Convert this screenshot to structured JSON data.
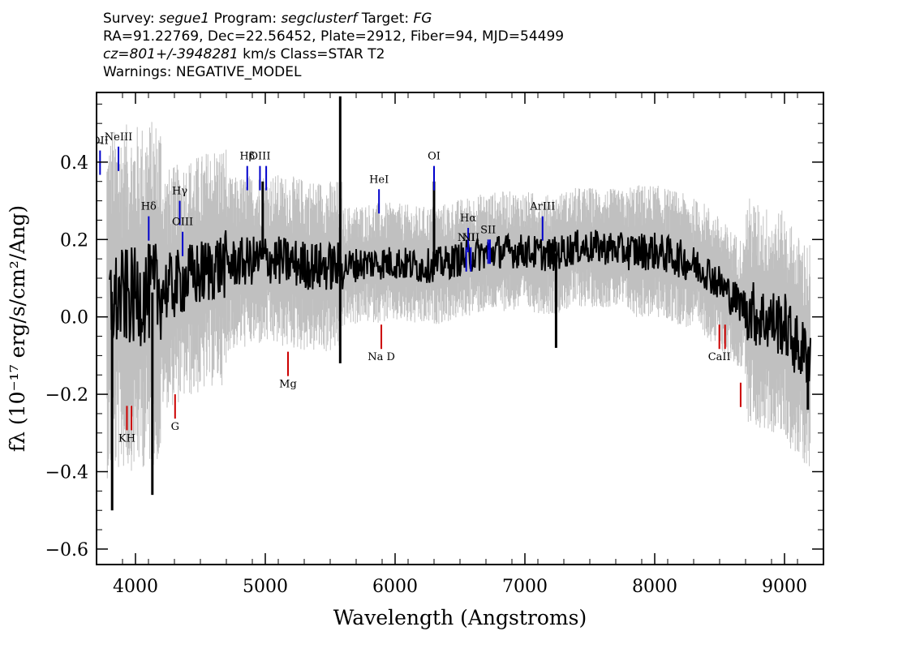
{
  "header": {
    "line1": {
      "survey_label": "Survey: ",
      "survey": "segue1",
      "program_label": " Program: ",
      "program": "segclusterf",
      "target_label": " Target: ",
      "target": "FG"
    },
    "line2": "RA=91.22769, Dec=22.56452, Plate=2912, Fiber=94, MJD=54499",
    "line3": {
      "cz": "cz=801+/-3948281",
      "rest": " km/s Class=STAR T2"
    },
    "line4": "Warnings: NEGATIVE_MODEL"
  },
  "chart_data": {
    "type": "line",
    "xlabel": "Wavelength (Angstroms)",
    "ylabel": "fλ (10⁻¹⁷ erg/s/cm²/Ang)",
    "xlim": [
      3700,
      9300
    ],
    "ylim": [
      -0.64,
      0.58
    ],
    "x_ticks": [
      4000,
      5000,
      6000,
      7000,
      8000,
      9000
    ],
    "x_tick_labels": [
      "4000",
      "5000",
      "6000",
      "7000",
      "8000",
      "9000"
    ],
    "y_ticks": [
      -0.6,
      -0.4,
      -0.2,
      0.0,
      0.2,
      0.4
    ],
    "y_tick_labels": [
      "−0.6",
      "−0.4",
      "−0.2",
      "0.0",
      "0.2",
      "0.4"
    ],
    "grid": false,
    "series": [
      {
        "role": "error_envelope",
        "color": "#c0c0c0"
      },
      {
        "role": "flux",
        "color": "#000000",
        "x": [
          3800,
          3900,
          4000,
          4100,
          4200,
          4300,
          4400,
          4500,
          4600,
          4800,
          5000,
          5200,
          5400,
          5600,
          5800,
          6000,
          6200,
          6400,
          6600,
          6800,
          7000,
          7200,
          7400,
          7600,
          7800,
          8000,
          8200,
          8400,
          8600,
          8800,
          9000,
          9100,
          9200
        ],
        "y": [
          0.03,
          0.05,
          0.05,
          0.06,
          0.07,
          0.08,
          0.1,
          0.11,
          0.13,
          0.14,
          0.15,
          0.14,
          0.13,
          0.13,
          0.14,
          0.14,
          0.13,
          0.14,
          0.16,
          0.17,
          0.17,
          0.16,
          0.18,
          0.18,
          0.17,
          0.17,
          0.15,
          0.12,
          0.05,
          0.0,
          -0.02,
          -0.08,
          -0.1
        ]
      }
    ],
    "spikes": [
      {
        "x": 3820,
        "y": -0.5
      },
      {
        "x": 4130,
        "y": -0.46
      },
      {
        "x": 5577,
        "y": 0.57
      },
      {
        "x": 5577,
        "y": -0.12
      },
      {
        "x": 6300,
        "y": 0.35
      },
      {
        "x": 4980,
        "y": 0.35
      },
      {
        "x": 7240,
        "y": -0.08
      },
      {
        "x": 9180,
        "y": -0.24
      }
    ],
    "emission_lines": [
      {
        "label": "OII",
        "x": 3727,
        "y": 0.43,
        "labelY": 0.5,
        "color": "#0000cc"
      },
      {
        "label": "NeIII",
        "x": 3869,
        "y": 0.44,
        "labelY": 0.5,
        "color": "#0000cc"
      },
      {
        "label": "Hδ",
        "x": 4102,
        "y": 0.26,
        "labelY": 0.33,
        "color": "#0000cc"
      },
      {
        "label": "Hγ",
        "x": 4341,
        "y": 0.3,
        "labelY": 0.36,
        "color": "#0000cc"
      },
      {
        "label": "OIII",
        "x": 4363,
        "y": 0.22,
        "labelY": 0.28,
        "color": "#0000cc"
      },
      {
        "label": "Hβ",
        "x": 4861,
        "y": 0.39,
        "labelY": 0.45,
        "color": "#0000cc"
      },
      {
        "label": "OIII",
        "x": 4959,
        "y": 0.39,
        "labelY": 0.45,
        "color": "#0000cc"
      },
      {
        "label": "",
        "x": 5007,
        "y": 0.39,
        "labelY": 0.45,
        "color": "#0000cc"
      },
      {
        "label": "HeI",
        "x": 5876,
        "y": 0.33,
        "labelY": 0.39,
        "color": "#0000cc"
      },
      {
        "label": "OI",
        "x": 6300,
        "y": 0.39,
        "labelY": 0.45,
        "color": "#0000cc"
      },
      {
        "label": "NII",
        "x": 6548,
        "y": 0.18,
        "labelY": 0.24,
        "color": "#0000cc"
      },
      {
        "label": "Hα",
        "x": 6563,
        "y": 0.23,
        "labelY": 0.27,
        "color": "#0000cc"
      },
      {
        "label": "NII",
        "x": 6583,
        "y": 0.18,
        "labelY": 0.24,
        "color": "#0000cc"
      },
      {
        "label": "SII",
        "x": 6717,
        "y": 0.2,
        "labelY": 0.27,
        "color": "#0000cc"
      },
      {
        "label": "",
        "x": 6731,
        "y": 0.2,
        "labelY": 0.27,
        "color": "#0000cc"
      },
      {
        "label": "ArIII",
        "x": 7136,
        "y": 0.26,
        "labelY": 0.32,
        "color": "#0000cc"
      }
    ],
    "absorption_lines": [
      {
        "label": "KH",
        "x": 3934,
        "y": -0.23,
        "labelY": -0.34,
        "color": "#cc0000"
      },
      {
        "label": "",
        "x": 3969,
        "y": -0.23,
        "labelY": -0.34,
        "color": "#cc0000"
      },
      {
        "label": "G",
        "x": 4305,
        "y": -0.2,
        "labelY": -0.28,
        "color": "#cc0000"
      },
      {
        "label": "Mg",
        "x": 5175,
        "y": -0.09,
        "labelY": -0.18,
        "color": "#cc0000"
      },
      {
        "label": "Na D",
        "x": 5894,
        "y": -0.02,
        "labelY": -0.11,
        "color": "#cc0000"
      },
      {
        "label": "CaII",
        "x": 8498,
        "y": -0.02,
        "labelY": -0.11,
        "color": "#cc0000"
      },
      {
        "label": "",
        "x": 8542,
        "y": -0.02,
        "labelY": -0.11,
        "color": "#cc0000"
      },
      {
        "label": "",
        "x": 8662,
        "y": -0.17,
        "labelY": -0.22,
        "color": "#cc0000"
      }
    ]
  }
}
